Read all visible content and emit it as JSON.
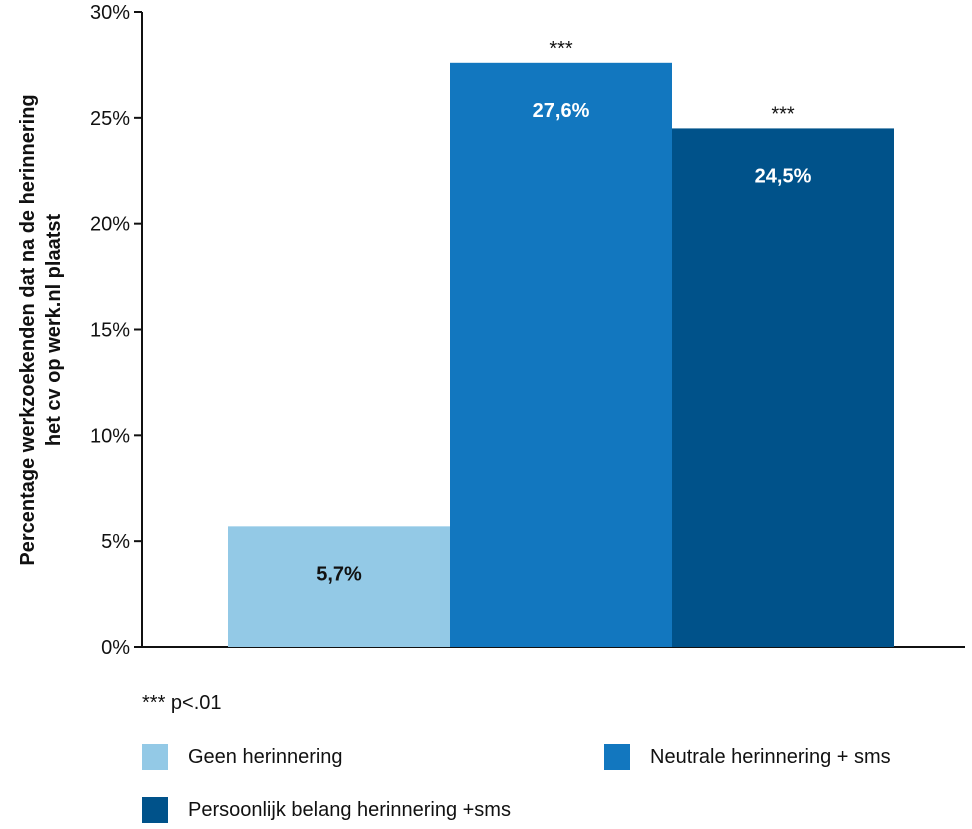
{
  "chart_data": {
    "type": "bar",
    "categories": [
      "Geen herinnering",
      "Neutrale herinnering + sms",
      "Persoonlijk belang herinnering +sms"
    ],
    "values": [
      5.7,
      27.6,
      24.5
    ],
    "value_labels": [
      "5,7%",
      "27,6%",
      "24,5%"
    ],
    "significance": [
      "",
      "***",
      "***"
    ],
    "colors": [
      "#93c9e6",
      "#1277bf",
      "#00528a"
    ],
    "value_label_colors": [
      "#111111",
      "#ffffff",
      "#ffffff"
    ],
    "ylabel_lines": [
      "Percentage werkzoekenden dat na de herinnering",
      "het cv op werk.nl plaatst"
    ],
    "ylim": [
      0,
      30
    ],
    "yticks": [
      0,
      5,
      10,
      15,
      20,
      25,
      30
    ],
    "ytick_labels": [
      "0%",
      "5%",
      "10%",
      "15%",
      "20%",
      "25%",
      "30%"
    ],
    "grid": false,
    "legend_position": "bottom"
  },
  "footnote": "*** p<.01",
  "legend": [
    {
      "label": "Geen herinnering",
      "color": "#93c9e6"
    },
    {
      "label": "Neutrale herinnering + sms",
      "color": "#1277bf"
    },
    {
      "label": "Persoonlijk belang herinnering +sms",
      "color": "#00528a"
    }
  ]
}
